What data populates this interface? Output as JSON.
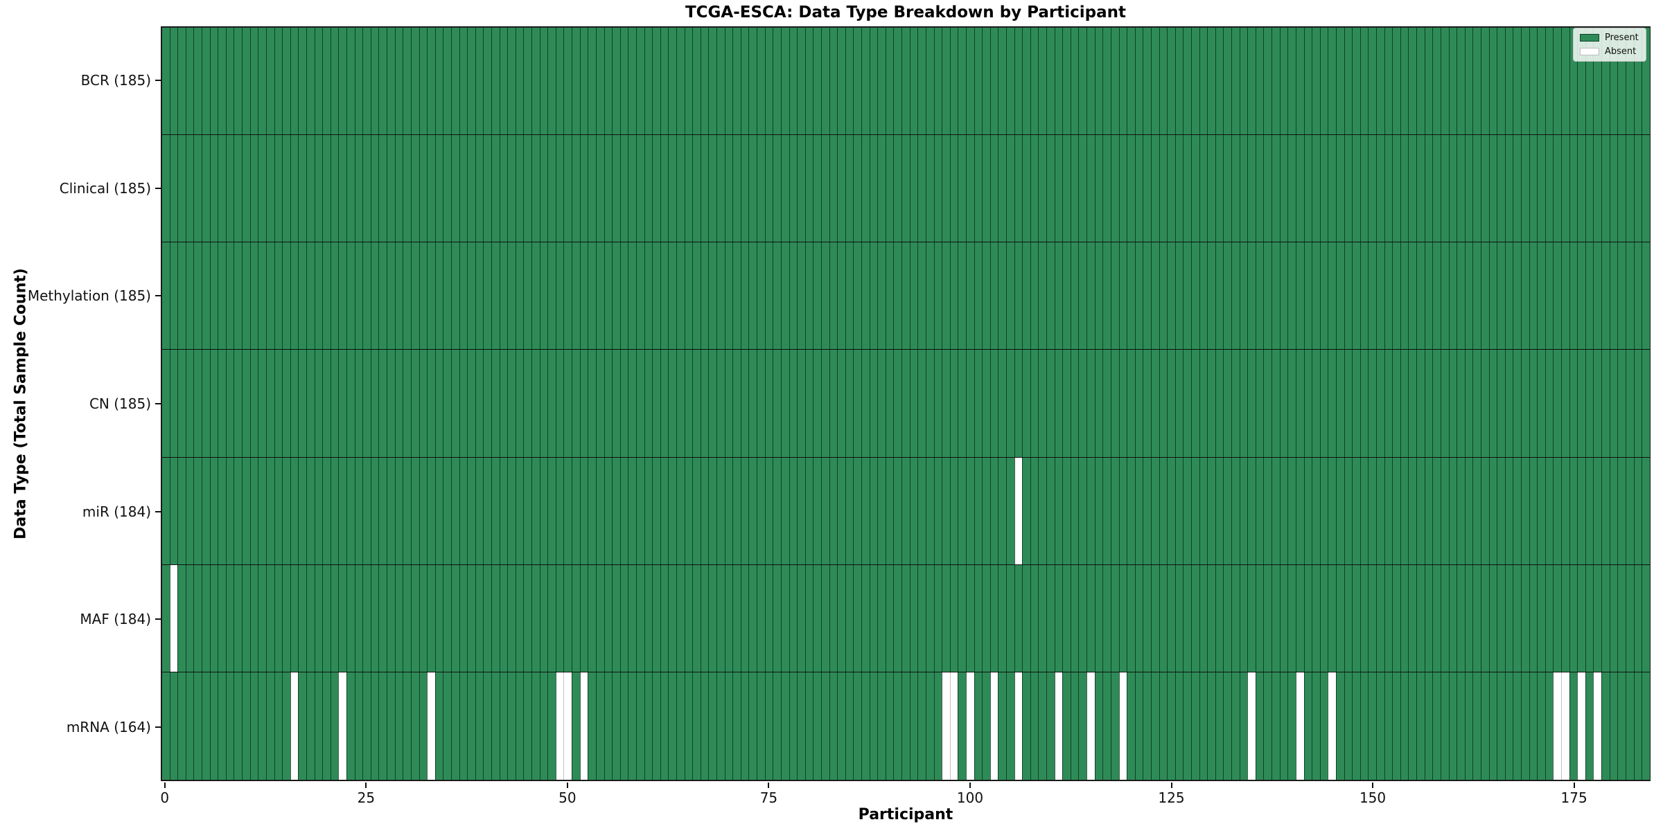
{
  "title": "TCGA-ESCA: Data Type Breakdown by Participant",
  "axes": {
    "xlabel": "Participant",
    "ylabel": "Data Type (Total Sample Count)"
  },
  "legend": {
    "present_label": "Present",
    "absent_label": "Absent"
  },
  "colors": {
    "present": "#2E8B57",
    "absent": "#ffffff",
    "bar_edge": "rgba(5,35,20,0.72)"
  },
  "chart_data": {
    "type": "heatmap",
    "title": "TCGA-ESCA: Data Type Breakdown by Participant",
    "xlabel": "Participant",
    "ylabel": "Data Type (Total Sample Count)",
    "legend_entries": [
      "Present",
      "Absent"
    ],
    "legend_position": "upper right",
    "grid": false,
    "n_participants": 185,
    "xlim": [
      -0.5,
      184.5
    ],
    "x_ticks": [
      0,
      25,
      50,
      75,
      100,
      125,
      150,
      175
    ],
    "value_encoding": {
      "present": 1,
      "absent": 0
    },
    "rows": [
      {
        "label": "BCR (185)",
        "data_type": "BCR",
        "total_count": 185,
        "absent_participants": []
      },
      {
        "label": "Clinical (185)",
        "data_type": "Clinical",
        "total_count": 185,
        "absent_participants": []
      },
      {
        "label": "Methylation (185)",
        "data_type": "Methylation",
        "total_count": 185,
        "absent_participants": []
      },
      {
        "label": "CN (185)",
        "data_type": "CN",
        "total_count": 185,
        "absent_participants": []
      },
      {
        "label": "miR (184)",
        "data_type": "miR",
        "total_count": 184,
        "absent_participants": [
          106
        ]
      },
      {
        "label": "MAF (184)",
        "data_type": "MAF",
        "total_count": 184,
        "absent_participants": [
          1
        ]
      },
      {
        "label": "mRNA (164)",
        "data_type": "mRNA",
        "total_count": 164,
        "absent_participants": [
          16,
          22,
          33,
          49,
          50,
          52,
          97,
          98,
          100,
          103,
          106,
          111,
          115,
          119,
          135,
          141,
          145,
          173,
          174,
          176,
          178
        ]
      }
    ]
  }
}
